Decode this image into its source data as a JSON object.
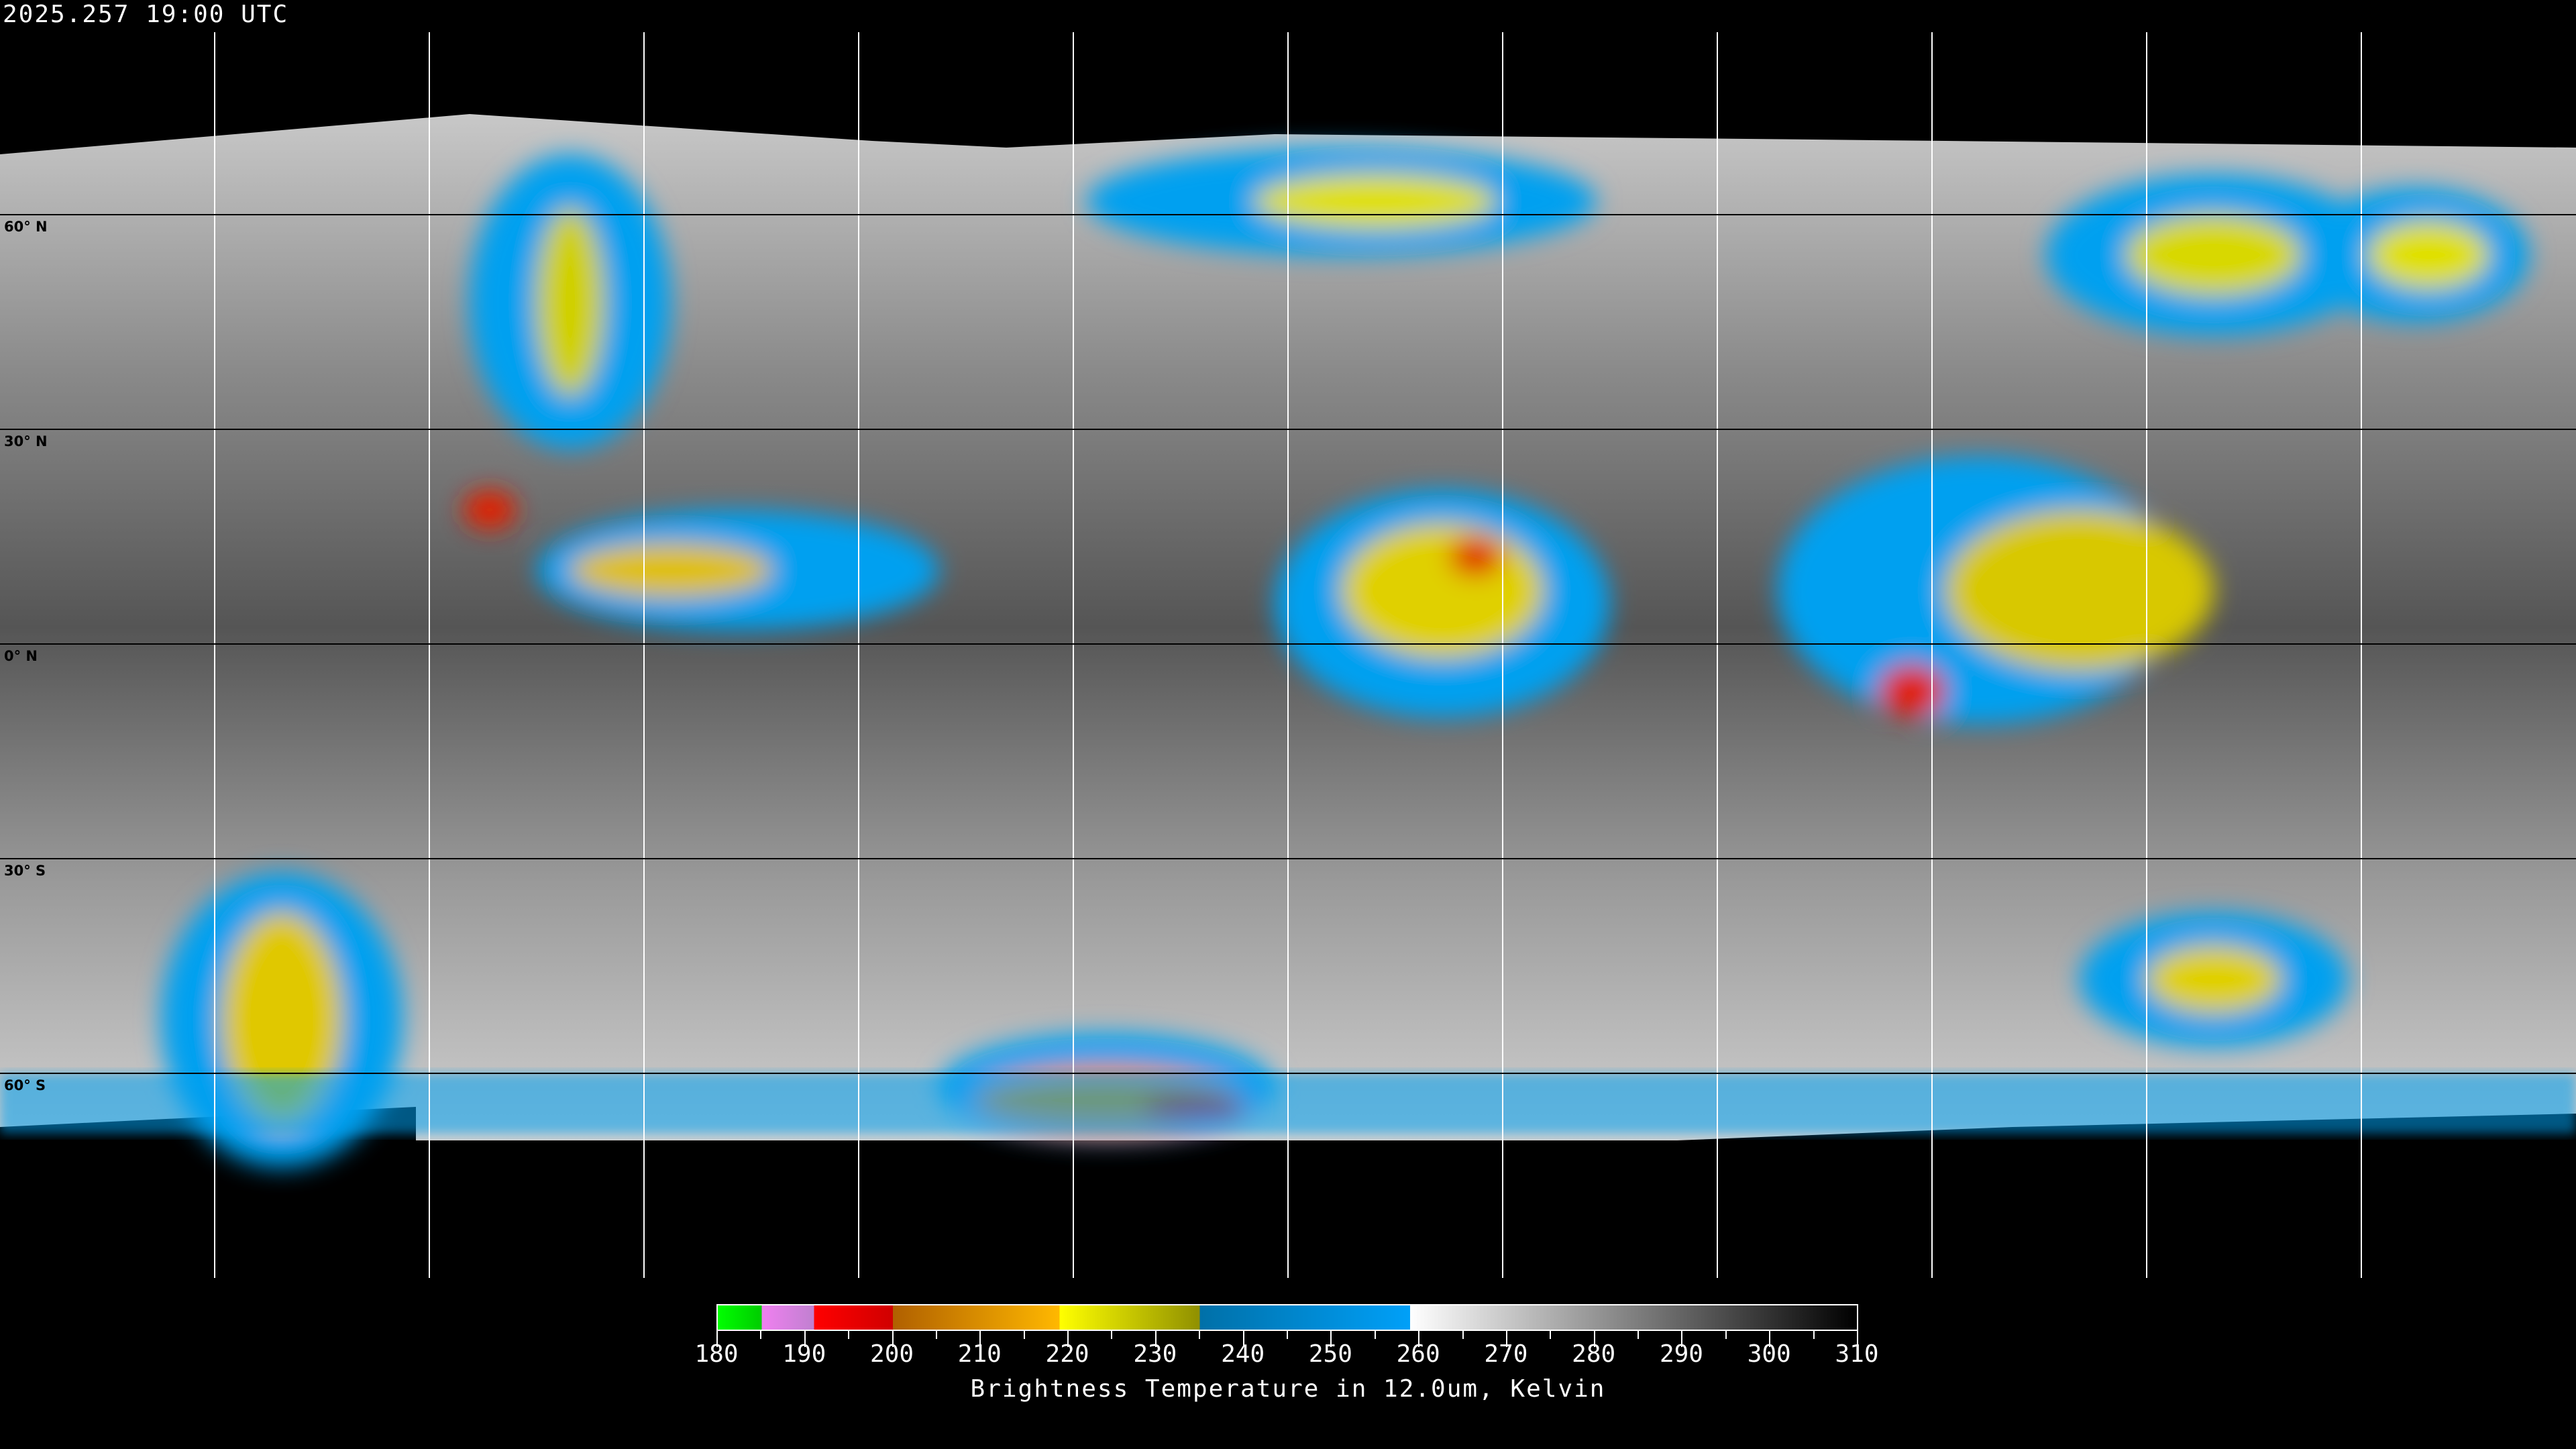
{
  "header": {
    "timestamp": "2025.257 19:00 UTC"
  },
  "map": {
    "projection": "equirectangular",
    "lat_labels": [
      "60° N",
      "30° N",
      "0° N",
      "30° S",
      "60° S"
    ],
    "grid_latitudes": [
      60,
      30,
      0,
      -30,
      -60
    ],
    "grid_longitudes": [
      -150,
      -120,
      -90,
      -60,
      -30,
      0,
      30,
      60,
      90,
      120,
      150
    ]
  },
  "colorbar": {
    "title": "Brightness Temperature in 12.0um, Kelvin",
    "range": [
      180,
      310
    ],
    "tick_labels": [
      "180",
      "190",
      "200",
      "210",
      "220",
      "230",
      "240",
      "250",
      "260",
      "270",
      "280",
      "290",
      "300",
      "310"
    ],
    "segments": [
      {
        "from": 180,
        "to": 185,
        "colors": [
          "#00ff00",
          "#00cc00"
        ]
      },
      {
        "from": 185,
        "to": 191,
        "colors": [
          "#f080f0",
          "#c080d0"
        ]
      },
      {
        "from": 191,
        "to": 200,
        "colors": [
          "#ff0000",
          "#d00000"
        ]
      },
      {
        "from": 200,
        "to": 219,
        "colors": [
          "#b06000",
          "#ffb800"
        ]
      },
      {
        "from": 219,
        "to": 235,
        "colors": [
          "#ffff00",
          "#909000"
        ]
      },
      {
        "from": 235,
        "to": 259,
        "colors": [
          "#0070a8",
          "#00a0f8"
        ]
      },
      {
        "from": 259,
        "to": 310,
        "colors": [
          "#ffffff",
          "#000000"
        ]
      }
    ]
  }
}
